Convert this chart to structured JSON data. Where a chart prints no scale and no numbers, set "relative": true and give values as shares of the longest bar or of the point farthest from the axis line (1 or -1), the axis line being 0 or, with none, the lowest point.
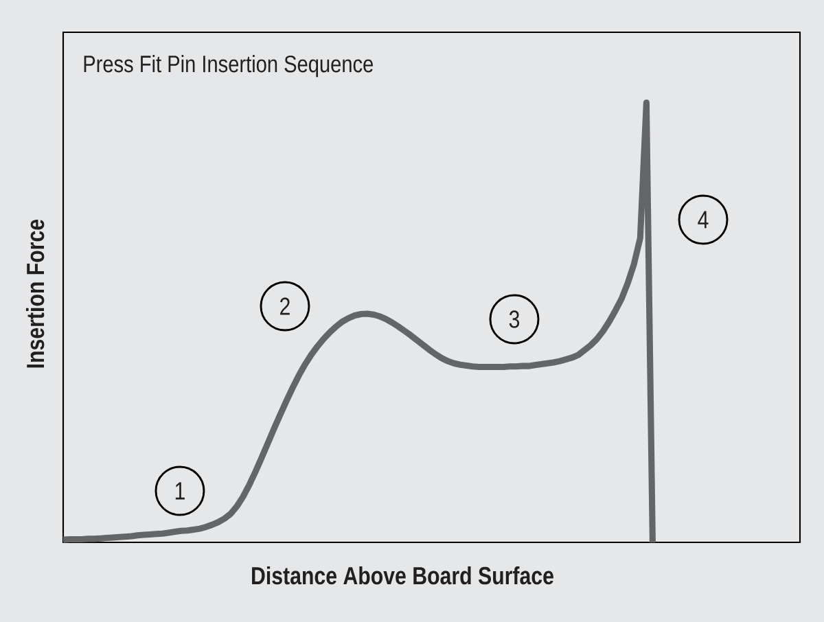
{
  "chart_data": {
    "type": "line",
    "title": "Press Fit Pin Insertion Sequence",
    "xlabel": "Distance Above Board Surface",
    "ylabel": "Insertion Force",
    "relative": true,
    "categories": [
      null,
      null,
      null,
      null,
      null,
      null,
      null,
      null,
      null,
      null,
      null,
      null,
      null,
      null,
      null,
      null,
      null,
      null,
      null,
      null,
      null,
      null,
      null,
      null,
      null,
      null,
      null,
      null,
      null,
      null,
      null,
      null,
      null,
      null,
      null,
      null,
      null,
      null,
      null,
      null,
      null,
      null,
      null,
      null,
      null,
      null,
      null,
      null,
      null,
      null,
      null,
      null,
      null,
      null,
      null,
      null,
      null,
      null,
      null,
      null,
      null,
      null,
      null,
      null,
      null,
      null,
      null,
      null,
      null,
      null,
      null,
      null,
      null,
      null,
      null,
      null,
      null,
      null,
      null,
      null,
      null,
      null,
      null,
      null,
      null,
      null,
      null,
      null,
      null,
      null,
      null,
      null,
      null,
      null,
      null,
      null
    ],
    "values": [
      0.006,
      0.007,
      0.007,
      0.007,
      0.008,
      0.008,
      0.009,
      0.01,
      0.011,
      0.012,
      0.013,
      0.014,
      0.016,
      0.017,
      0.018,
      0.019,
      0.02,
      0.022,
      0.024,
      0.026,
      0.027,
      0.029,
      0.031,
      0.035,
      0.04,
      0.046,
      0.054,
      0.065,
      0.082,
      0.104,
      0.131,
      0.161,
      0.193,
      0.226,
      0.259,
      0.291,
      0.322,
      0.352,
      0.38,
      0.405,
      0.427,
      0.446,
      0.463,
      0.478,
      0.491,
      0.502,
      0.51,
      0.516,
      0.519,
      0.52,
      0.518,
      0.514,
      0.508,
      0.5,
      0.491,
      0.481,
      0.471,
      0.46,
      0.449,
      0.438,
      0.428,
      0.419,
      0.412,
      0.407,
      0.404,
      0.402,
      0.4,
      0.399,
      0.399,
      0.399,
      0.399,
      0.399,
      0.4,
      0.4,
      0.401,
      0.401,
      0.403,
      0.405,
      0.407,
      0.409,
      0.412,
      0.416,
      0.42,
      0.426,
      0.437,
      0.448,
      0.462,
      0.48,
      0.502,
      0.527,
      0.554,
      0.59,
      0.633,
      0.692,
      1.0,
      0
    ],
    "color": "#646567",
    "annotations": [
      "1",
      "2",
      "3",
      "4"
    ]
  }
}
